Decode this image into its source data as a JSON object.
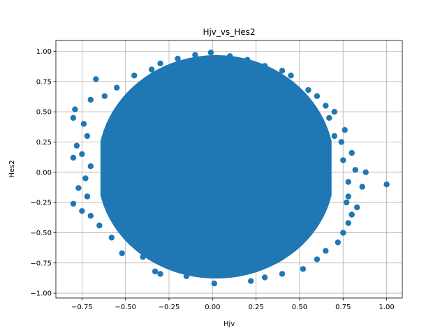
{
  "chart_data": {
    "type": "scatter",
    "title": "Hjv_vs_Hes2",
    "xlabel": "Hjv",
    "ylabel": "Hes2",
    "xlim": [
      -0.9,
      1.09
    ],
    "ylim": [
      -1.04,
      1.09
    ],
    "xticks": [
      -0.75,
      -0.5,
      -0.25,
      0.0,
      0.25,
      0.5,
      0.75,
      1.0
    ],
    "xtick_labels": [
      "−0.75",
      "−0.50",
      "−0.25",
      "0.00",
      "0.25",
      "0.50",
      "0.75",
      "1.00"
    ],
    "yticks": [
      -1.0,
      -0.75,
      -0.5,
      -0.25,
      0.0,
      0.25,
      0.5,
      0.75,
      1.0
    ],
    "ytick_labels": [
      "−1.00",
      "−0.75",
      "−0.50",
      "−0.25",
      "0.00",
      "0.25",
      "0.50",
      "0.75",
      "1.00"
    ],
    "grid": true,
    "marker_color": "#1f77b4",
    "points": [
      {
        "x": -0.01,
        "y": 0.99
      },
      {
        "x": -0.1,
        "y": 0.97
      },
      {
        "x": 0.1,
        "y": 0.96
      },
      {
        "x": -0.2,
        "y": 0.94
      },
      {
        "x": 0.2,
        "y": 0.93
      },
      {
        "x": -0.3,
        "y": 0.9
      },
      {
        "x": 0.3,
        "y": 0.88
      },
      {
        "x": -0.35,
        "y": 0.85
      },
      {
        "x": 0.4,
        "y": 0.84
      },
      {
        "x": -0.45,
        "y": 0.8
      },
      {
        "x": 0.45,
        "y": 0.8
      },
      {
        "x": -0.67,
        "y": 0.77
      },
      {
        "x": 0.55,
        "y": 0.68
      },
      {
        "x": -0.55,
        "y": 0.7
      },
      {
        "x": -0.62,
        "y": 0.63
      },
      {
        "x": 0.6,
        "y": 0.63
      },
      {
        "x": -0.7,
        "y": 0.6
      },
      {
        "x": 0.65,
        "y": 0.55
      },
      {
        "x": -0.79,
        "y": 0.52
      },
      {
        "x": -0.8,
        "y": 0.45
      },
      {
        "x": 0.7,
        "y": 0.5
      },
      {
        "x": -0.74,
        "y": 0.4
      },
      {
        "x": 0.67,
        "y": 0.45
      },
      {
        "x": 0.76,
        "y": 0.35
      },
      {
        "x": -0.72,
        "y": 0.3
      },
      {
        "x": 0.7,
        "y": 0.3
      },
      {
        "x": -0.78,
        "y": 0.22
      },
      {
        "x": 0.74,
        "y": 0.25
      },
      {
        "x": -0.75,
        "y": 0.15
      },
      {
        "x": 0.8,
        "y": 0.16
      },
      {
        "x": -0.8,
        "y": 0.12
      },
      {
        "x": 0.75,
        "y": 0.1
      },
      {
        "x": -0.7,
        "y": 0.05
      },
      {
        "x": 0.82,
        "y": 0.02
      },
      {
        "x": 0.88,
        "y": 0.0
      },
      {
        "x": -0.73,
        "y": -0.05
      },
      {
        "x": -0.77,
        "y": -0.13
      },
      {
        "x": 0.78,
        "y": -0.08
      },
      {
        "x": 0.86,
        "y": -0.12
      },
      {
        "x": 1.0,
        "y": -0.1
      },
      {
        "x": -0.72,
        "y": -0.2
      },
      {
        "x": 0.78,
        "y": -0.2
      },
      {
        "x": -0.8,
        "y": -0.26
      },
      {
        "x": 0.77,
        "y": -0.25
      },
      {
        "x": -0.75,
        "y": -0.32
      },
      {
        "x": 0.83,
        "y": -0.29
      },
      {
        "x": -0.7,
        "y": -0.36
      },
      {
        "x": 0.8,
        "y": -0.35
      },
      {
        "x": -0.65,
        "y": -0.44
      },
      {
        "x": 0.78,
        "y": -0.42
      },
      {
        "x": -0.58,
        "y": -0.54
      },
      {
        "x": 0.75,
        "y": -0.5
      },
      {
        "x": -0.52,
        "y": -0.67
      },
      {
        "x": 0.72,
        "y": -0.58
      },
      {
        "x": 0.65,
        "y": -0.65
      },
      {
        "x": -0.4,
        "y": -0.7
      },
      {
        "x": 0.6,
        "y": -0.72
      },
      {
        "x": -0.33,
        "y": -0.82
      },
      {
        "x": 0.52,
        "y": -0.8
      },
      {
        "x": -0.3,
        "y": -0.84
      },
      {
        "x": 0.4,
        "y": -0.84
      },
      {
        "x": -0.15,
        "y": -0.86
      },
      {
        "x": 0.3,
        "y": -0.87
      },
      {
        "x": 0.01,
        "y": -0.92
      },
      {
        "x": 0.22,
        "y": -0.9
      },
      {
        "x": 0.0,
        "y": -0.5
      },
      {
        "x": 0.1,
        "y": 0.2
      },
      {
        "x": -0.2,
        "y": 0.1
      },
      {
        "x": 0.2,
        "y": -0.3
      },
      {
        "x": -0.3,
        "y": -0.2
      }
    ]
  }
}
